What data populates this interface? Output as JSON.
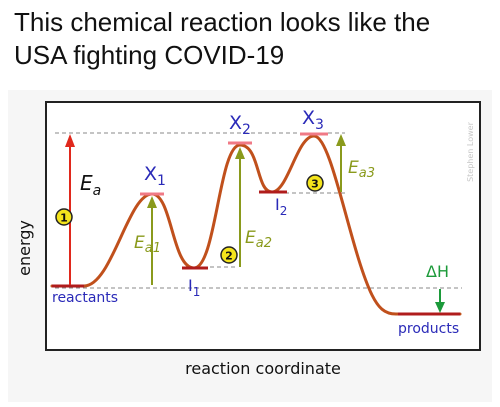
{
  "caption": {
    "line1": "This chemical reaction looks like the",
    "line2": "USA fighting COVID-19"
  },
  "diagram": {
    "y_axis_label": "energy",
    "x_axis_label": "reaction coordinate",
    "reactants_label": "reactants",
    "products_label": "products",
    "transition_states": [
      "X",
      "X",
      "X"
    ],
    "transition_state_subscripts": [
      "1",
      "2",
      "3"
    ],
    "intermediates": [
      "I",
      "I"
    ],
    "intermediate_subscripts": [
      "1",
      "2"
    ],
    "activation_energy_symbol": "E",
    "activation_energy_subscript_overall": "a",
    "activation_energy_subscripts_steps": [
      "a1",
      "a2",
      "a3"
    ],
    "step_markers": [
      "1",
      "2",
      "3"
    ],
    "delta_h_label": "ΔH",
    "watermark": "Stephen Lower",
    "colors": {
      "curve": "#c0501c",
      "level_line": "#b01c1c",
      "transition_marker": "#f07a86",
      "overall_arrow": "#e0281c",
      "step_arrow": "#8a9a1c",
      "delta_h_arrow": "#1c9a3a",
      "label_blue": "#2a2ab8",
      "marker_fill": "#f4e41c",
      "frame": "#222222",
      "panel_bg": "#f6f6f6"
    }
  }
}
